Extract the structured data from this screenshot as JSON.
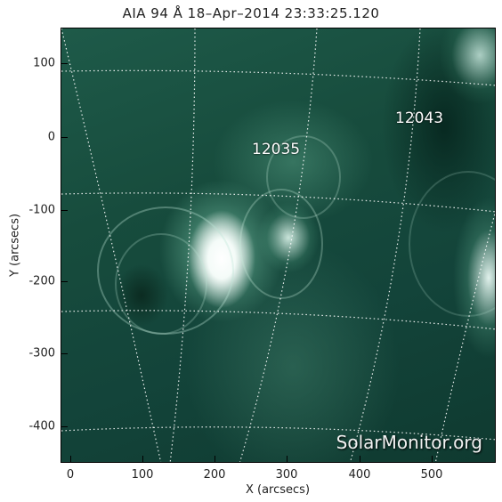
{
  "title": "AIA 94 Å 18–Apr–2014 23:33:25.120",
  "watermark": "SolarMonitor.org",
  "regions": [
    {
      "label": "12035"
    },
    {
      "label": "12043"
    }
  ],
  "axes": {
    "xlabel": "X (arcsecs)",
    "ylabel": "Y (arcsecs)",
    "xticks": [
      "0",
      "100",
      "200",
      "300",
      "400",
      "500"
    ],
    "yticks": [
      "100",
      "0",
      "-100",
      "-200",
      "-300",
      "-400"
    ],
    "xlim": [
      -15,
      585
    ],
    "ylim": [
      -450,
      150
    ]
  },
  "colors": {
    "solar_tint": "#174c3d",
    "grid": "#ffffff"
  }
}
